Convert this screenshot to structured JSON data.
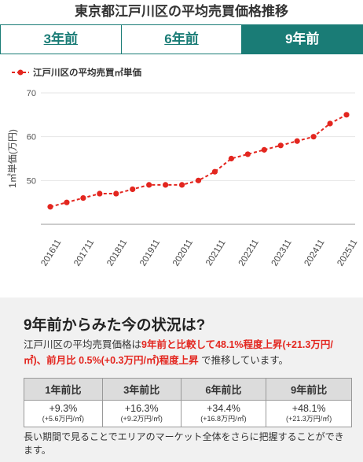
{
  "header": {
    "title": "東京都江戸川区の平均売買価格推移"
  },
  "tabs": [
    {
      "label": "3年前",
      "active": false
    },
    {
      "label": "6年前",
      "active": false
    },
    {
      "label": "9年前",
      "active": true
    }
  ],
  "colors": {
    "accent": "#1a7c76",
    "series": "#e3261f",
    "highlight": "#e3261f"
  },
  "chart_data": {
    "type": "line",
    "legend_position": "top-left",
    "ylabel": "1㎡単価(万円)",
    "ylim": [
      40,
      70
    ],
    "yticks": [
      "50",
      "60",
      "70"
    ],
    "grid": true,
    "x_tick_labels": [
      "201611",
      "201711",
      "201811",
      "201911",
      "202011",
      "202111",
      "202211",
      "202311",
      "202411",
      "202511"
    ],
    "series": [
      {
        "name": "江戸川区の平均売買㎡単価",
        "x": [
          "201611",
          "201705",
          "201711",
          "201805",
          "201811",
          "201905",
          "201911",
          "202005",
          "202011",
          "202105",
          "202111",
          "202205",
          "202211",
          "202305",
          "202311",
          "202405",
          "202411",
          "202505",
          "202511"
        ],
        "values": [
          44.0,
          45.0,
          46.0,
          47.0,
          47.0,
          48.0,
          49.0,
          49.0,
          49.0,
          50.0,
          52.0,
          55.0,
          56.0,
          57.0,
          58.0,
          59.0,
          60.0,
          63.0,
          65.0
        ]
      }
    ]
  },
  "summary": {
    "title": "9年前からみた今の状況は?",
    "text_prefix": "江戸川区の平均売買価格は",
    "text_highlight": "9年前と比較して48.1%程度上昇(+21.3万円/㎡)、前月比 0.5%(+0.3万円/㎡)程度上昇",
    "text_suffix": " で推移しています。",
    "table": {
      "headers": [
        "1年前比",
        "3年前比",
        "6年前比",
        "9年前比"
      ],
      "rows": [
        {
          "value": "+9.3%",
          "sub": "(+5.6万円/㎡)"
        },
        {
          "value": "+16.3%",
          "sub": "(+9.2万円/㎡)"
        },
        {
          "value": "+34.4%",
          "sub": "(+16.8万円/㎡)"
        },
        {
          "value": "+48.1%",
          "sub": "(+21.3万円/㎡)"
        }
      ]
    },
    "footer": "長い期間で見ることでエリアのマーケット全体をさらに把握することができます。"
  }
}
